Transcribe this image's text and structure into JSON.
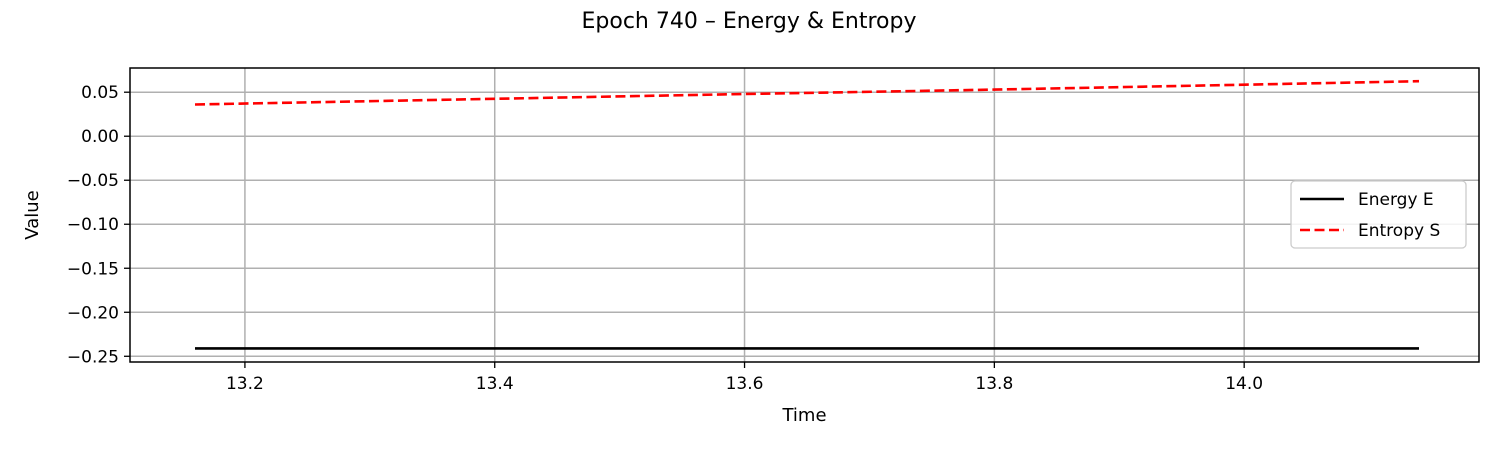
{
  "chart_data": {
    "type": "line",
    "title": "Epoch 740 – Energy & Entropy",
    "xlabel": "Time",
    "ylabel": "Value",
    "xlim": [
      13.108,
      14.188
    ],
    "ylim": [
      -0.2565,
      0.0775
    ],
    "x_ticks": [
      13.2,
      13.4,
      13.6,
      13.8,
      14.0
    ],
    "x_tick_labels": [
      "13.2",
      "13.4",
      "13.6",
      "13.8",
      "14.0"
    ],
    "y_ticks": [
      0.05,
      0.0,
      -0.05,
      -0.1,
      -0.15,
      -0.2,
      -0.25
    ],
    "y_tick_labels": [
      "0.05",
      "0.00",
      "−0.05",
      "−0.10",
      "−0.15",
      "−0.20",
      "−0.25"
    ],
    "grid": true,
    "legend_position": "center-right",
    "series": [
      {
        "name": "Energy E",
        "color": "#000000",
        "style": "solid",
        "x": [
          13.16,
          13.4,
          13.6,
          13.8,
          14.0,
          14.14
        ],
        "y": [
          -0.241,
          -0.241,
          -0.241,
          -0.241,
          -0.241,
          -0.241
        ]
      },
      {
        "name": "Entropy S",
        "color": "#ff0000",
        "style": "dashed",
        "x": [
          13.16,
          13.4,
          13.6,
          13.8,
          14.0,
          14.14
        ],
        "y": [
          0.036,
          0.0425,
          0.048,
          0.053,
          0.0585,
          0.0625
        ]
      }
    ]
  }
}
